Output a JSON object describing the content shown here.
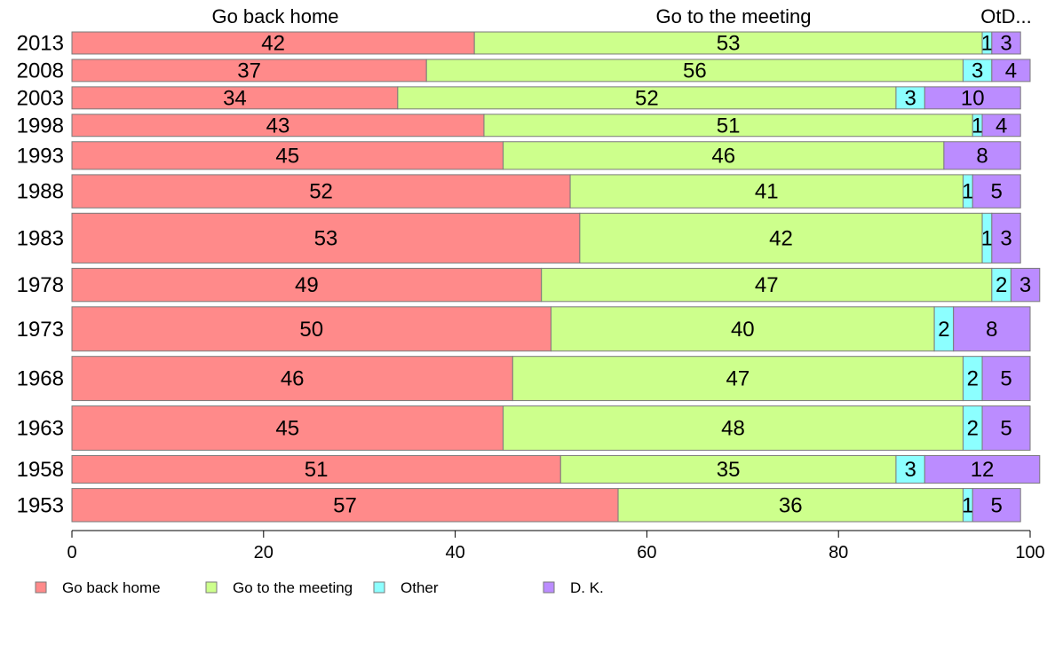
{
  "chart_data": {
    "type": "bar",
    "orientation": "horizontal",
    "stacked": true,
    "column_headers": [
      "Go back home",
      "Go to the meeting",
      "OtD..."
    ],
    "categories": [
      "2013",
      "2008",
      "2003",
      "1998",
      "1993",
      "1988",
      "1983",
      "1978",
      "1973",
      "1968",
      "1963",
      "1958",
      "1953"
    ],
    "series": [
      {
        "name": "Go back home",
        "color": "#ff8a8a",
        "values": [
          42,
          37,
          34,
          43,
          45,
          52,
          53,
          49,
          50,
          46,
          45,
          51,
          57
        ]
      },
      {
        "name": "Go to the meeting",
        "color": "#cdff8c",
        "values": [
          53,
          56,
          52,
          51,
          46,
          41,
          42,
          47,
          40,
          47,
          48,
          35,
          36
        ]
      },
      {
        "name": "Other",
        "color": "#8cffff",
        "values": [
          1,
          3,
          3,
          1,
          0,
          1,
          1,
          2,
          2,
          2,
          2,
          3,
          1
        ]
      },
      {
        "name": "D. K.",
        "color": "#bb8cff",
        "values": [
          3,
          4,
          10,
          4,
          8,
          5,
          3,
          3,
          8,
          5,
          5,
          12,
          5
        ]
      }
    ],
    "row_sample_weights": [
      4,
      4,
      4,
      4,
      5,
      6,
      9,
      6,
      8,
      8,
      8,
      5,
      6
    ],
    "xlim": [
      0,
      100
    ],
    "xticks": [
      "0",
      "20",
      "40",
      "60",
      "80",
      "100"
    ],
    "xlabel": "",
    "ylabel": "",
    "grid": false,
    "legend_position": "bottom"
  }
}
